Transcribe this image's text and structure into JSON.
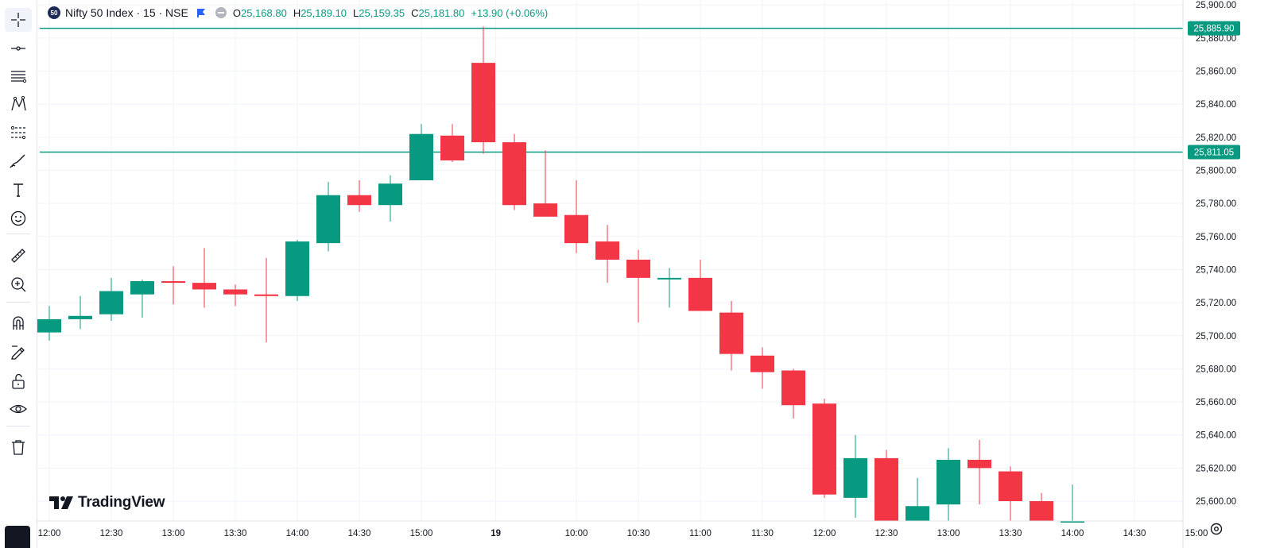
{
  "header": {
    "logo_text": "50",
    "title": "Nifty 50 Index · 15 · NSE",
    "o_label": "O",
    "o_value": "25,168.80",
    "h_label": "H",
    "h_value": "25,189.10",
    "l_label": "L",
    "l_value": "25,159.35",
    "c_label": "C",
    "c_value": "25,181.80",
    "change": "+13.90 (+0.06%)"
  },
  "brand": {
    "name": "TradingView"
  },
  "toolbar": {
    "tools": [
      "crosshair-icon",
      "horizontal-line-icon",
      "fib-levels-icon",
      "pattern-icon",
      "projection-icon",
      "brush-icon",
      "text-icon",
      "emoji-icon",
      "ruler-icon",
      "zoom-in-icon",
      "magnet-icon",
      "lock-draw-icon",
      "unlock-icon",
      "eye-icon",
      "trash-icon"
    ]
  },
  "chart_data": {
    "type": "candlestick",
    "colors": {
      "up": "#089981",
      "down": "#f23645",
      "line": "#089981",
      "grid": "#f0f3fa",
      "axis_text": "#131722"
    },
    "ylim": [
      25588,
      25903
    ],
    "y_ticks": [
      25600,
      25620,
      25640,
      25660,
      25680,
      25700,
      25720,
      25740,
      25760,
      25780,
      25800,
      25820,
      25840,
      25860,
      25880,
      25900
    ],
    "y_tick_labels": [
      "25,600.00",
      "25,620.00",
      "25,640.00",
      "25,660.00",
      "25,680.00",
      "25,700.00",
      "25,720.00",
      "25,740.00",
      "25,760.00",
      "25,780.00",
      "25,800.00",
      "25,820.00",
      "25,840.00",
      "25,860.00",
      "25,880.00",
      "25,900.00"
    ],
    "x_labels": [
      {
        "i": 0,
        "label": "12:00"
      },
      {
        "i": 2,
        "label": "12:30"
      },
      {
        "i": 4,
        "label": "13:00"
      },
      {
        "i": 6,
        "label": "13:30"
      },
      {
        "i": 8,
        "label": "14:00"
      },
      {
        "i": 10,
        "label": "14:30"
      },
      {
        "i": 12,
        "label": "15:00"
      },
      {
        "i": 14.4,
        "label": "19",
        "bold": true
      },
      {
        "i": 17,
        "label": "10:00"
      },
      {
        "i": 19,
        "label": "10:30"
      },
      {
        "i": 21,
        "label": "11:00"
      },
      {
        "i": 23,
        "label": "11:30"
      },
      {
        "i": 25,
        "label": "12:00"
      },
      {
        "i": 27,
        "label": "12:30"
      },
      {
        "i": 29,
        "label": "13:00"
      },
      {
        "i": 31,
        "label": "13:30"
      },
      {
        "i": 33,
        "label": "14:00"
      },
      {
        "i": 35,
        "label": "14:30"
      },
      {
        "i": 37,
        "label": "15:00"
      }
    ],
    "candles": [
      {
        "o": 25702,
        "h": 25718,
        "l": 25697,
        "c": 25710
      },
      {
        "o": 25710,
        "h": 25724,
        "l": 25704,
        "c": 25712
      },
      {
        "o": 25713,
        "h": 25735,
        "l": 25709,
        "c": 25727
      },
      {
        "o": 25725,
        "h": 25734,
        "l": 25711,
        "c": 25733
      },
      {
        "o": 25733,
        "h": 25742,
        "l": 25719,
        "c": 25732
      },
      {
        "o": 25732,
        "h": 25753,
        "l": 25717,
        "c": 25728
      },
      {
        "o": 25728,
        "h": 25731,
        "l": 25718,
        "c": 25725
      },
      {
        "o": 25725,
        "h": 25747,
        "l": 25696,
        "c": 25724
      },
      {
        "o": 25724,
        "h": 25758,
        "l": 25721,
        "c": 25757
      },
      {
        "o": 25756,
        "h": 25793,
        "l": 25751,
        "c": 25785
      },
      {
        "o": 25785,
        "h": 25794,
        "l": 25775,
        "c": 25779
      },
      {
        "o": 25779,
        "h": 25797,
        "l": 25769,
        "c": 25792
      },
      {
        "o": 25794,
        "h": 25828,
        "l": 25794,
        "c": 25822
      },
      {
        "o": 25821,
        "h": 25828,
        "l": 25805,
        "c": 25806
      },
      {
        "o": 25865,
        "h": 25887,
        "l": 25810,
        "c": 25817
      },
      {
        "o": 25817,
        "h": 25822,
        "l": 25776,
        "c": 25779
      },
      {
        "o": 25780,
        "h": 25812,
        "l": 25773,
        "c": 25772
      },
      {
        "o": 25773,
        "h": 25794,
        "l": 25750,
        "c": 25756
      },
      {
        "o": 25757,
        "h": 25767,
        "l": 25732,
        "c": 25746
      },
      {
        "o": 25746,
        "h": 25752,
        "l": 25708,
        "c": 25735
      },
      {
        "o": 25735,
        "h": 25741,
        "l": 25717,
        "c": 25735
      },
      {
        "o": 25735,
        "h": 25746,
        "l": 25715,
        "c": 25715
      },
      {
        "o": 25714,
        "h": 25721,
        "l": 25679,
        "c": 25689
      },
      {
        "o": 25688,
        "h": 25693,
        "l": 25668,
        "c": 25678
      },
      {
        "o": 25679,
        "h": 25680,
        "l": 25650,
        "c": 25658
      },
      {
        "o": 25659,
        "h": 25662,
        "l": 25602,
        "c": 25604
      },
      {
        "o": 25602,
        "h": 25640,
        "l": 25590,
        "c": 25626
      },
      {
        "o": 25626,
        "h": 25631,
        "l": 25588,
        "c": 25588
      },
      {
        "o": 25588,
        "h": 25614,
        "l": 25588,
        "c": 25597
      },
      {
        "o": 25598,
        "h": 25632,
        "l": 25588,
        "c": 25625
      },
      {
        "o": 25625,
        "h": 25637,
        "l": 25598,
        "c": 25620
      },
      {
        "o": 25618,
        "h": 25621,
        "l": 25588,
        "c": 25600
      },
      {
        "o": 25600,
        "h": 25605,
        "l": 25588,
        "c": 25588
      },
      {
        "o": 25588,
        "h": 25610,
        "l": 25588,
        "c": 25588
      }
    ],
    "h_lines": [
      {
        "value": 25885.9,
        "label": "25,885.90"
      },
      {
        "value": 25811.05,
        "label": "25,811.05"
      }
    ]
  }
}
